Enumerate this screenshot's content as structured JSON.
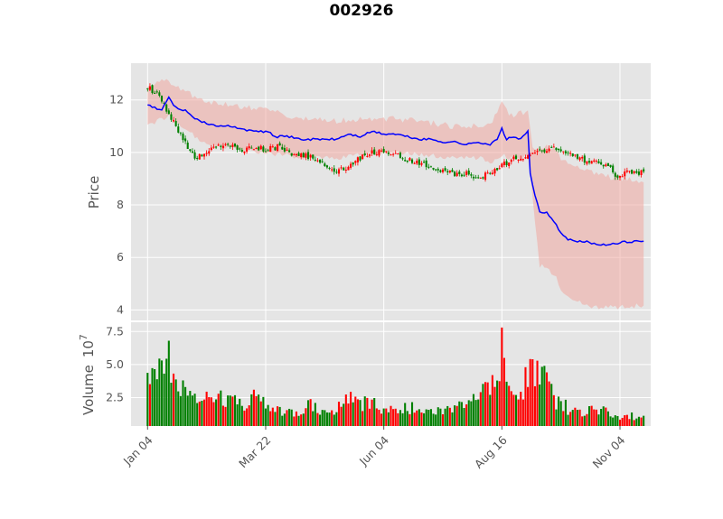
{
  "chart_data": {
    "type": "candlestick",
    "title": "002926",
    "colors": {
      "up": "#ff0000",
      "down": "#008000",
      "ma_line": "#0000ff",
      "band": "#f0a8a0",
      "plot_bg": "#e5e5e5",
      "grid": "#ffffff"
    },
    "price_panel": {
      "ylabel": "Price",
      "ylim": [
        3.6,
        13.4
      ],
      "yticks": [
        4,
        6,
        8,
        10,
        12
      ],
      "ytick_labels": [
        "4",
        "6",
        "8",
        "10",
        "12"
      ]
    },
    "volume_panel": {
      "ylabel": "Volume",
      "scale_label": "10",
      "scale_exp": "7",
      "ylim": [
        0.35,
        8.2
      ],
      "yticks": [
        2.5,
        5.0,
        7.5
      ],
      "ytick_labels": [
        "2.5",
        "5.0",
        "7.5"
      ]
    },
    "xaxis": {
      "xlim": [
        -7,
        213
      ],
      "tick_positions": [
        0,
        50,
        100,
        150,
        200
      ],
      "tick_labels": [
        "Jan 04",
        "Mar 22",
        "Jun 04",
        "Aug 16",
        "Nov 04"
      ]
    },
    "close_anchors": [
      [
        0,
        12.5
      ],
      [
        3,
        12.3
      ],
      [
        5,
        12.2
      ],
      [
        7,
        11.8
      ],
      [
        9,
        11.4
      ],
      [
        12,
        11.0
      ],
      [
        15,
        10.5
      ],
      [
        18,
        10.0
      ],
      [
        21,
        9.8
      ],
      [
        24,
        9.9
      ],
      [
        28,
        10.2
      ],
      [
        32,
        10.3
      ],
      [
        36,
        10.3
      ],
      [
        40,
        10.1
      ],
      [
        45,
        10.2
      ],
      [
        50,
        10.1
      ],
      [
        55,
        10.2
      ],
      [
        60,
        10.0
      ],
      [
        65,
        9.9
      ],
      [
        70,
        9.8
      ],
      [
        75,
        9.5
      ],
      [
        80,
        9.3
      ],
      [
        85,
        9.4
      ],
      [
        90,
        9.8
      ],
      [
        95,
        10.0
      ],
      [
        100,
        10.0
      ],
      [
        105,
        9.9
      ],
      [
        110,
        9.7
      ],
      [
        115,
        9.6
      ],
      [
        120,
        9.5
      ],
      [
        125,
        9.3
      ],
      [
        130,
        9.2
      ],
      [
        135,
        9.2
      ],
      [
        140,
        9.0
      ],
      [
        145,
        9.2
      ],
      [
        150,
        9.5
      ],
      [
        155,
        9.8
      ],
      [
        160,
        9.8
      ],
      [
        165,
        10.0
      ],
      [
        170,
        10.2
      ],
      [
        175,
        10.1
      ],
      [
        180,
        9.9
      ],
      [
        185,
        9.7
      ],
      [
        190,
        9.7
      ],
      [
        195,
        9.5
      ],
      [
        198,
        9.1
      ],
      [
        202,
        9.2
      ],
      [
        206,
        9.3
      ],
      [
        210,
        9.2
      ]
    ],
    "ma_anchors": [
      [
        0,
        11.8
      ],
      [
        3,
        11.7
      ],
      [
        6,
        11.6
      ],
      [
        9,
        12.1
      ],
      [
        12,
        11.7
      ],
      [
        16,
        11.6
      ],
      [
        20,
        11.3
      ],
      [
        25,
        11.1
      ],
      [
        30,
        11.0
      ],
      [
        35,
        11.0
      ],
      [
        40,
        10.9
      ],
      [
        45,
        10.8
      ],
      [
        50,
        10.8
      ],
      [
        55,
        10.6
      ],
      [
        60,
        10.6
      ],
      [
        65,
        10.5
      ],
      [
        70,
        10.5
      ],
      [
        75,
        10.5
      ],
      [
        80,
        10.5
      ],
      [
        85,
        10.7
      ],
      [
        90,
        10.6
      ],
      [
        95,
        10.8
      ],
      [
        100,
        10.7
      ],
      [
        105,
        10.7
      ],
      [
        110,
        10.6
      ],
      [
        115,
        10.5
      ],
      [
        120,
        10.5
      ],
      [
        125,
        10.4
      ],
      [
        130,
        10.4
      ],
      [
        135,
        10.3
      ],
      [
        140,
        10.4
      ],
      [
        145,
        10.3
      ],
      [
        148,
        10.5
      ],
      [
        150,
        10.9
      ],
      [
        152,
        10.5
      ],
      [
        155,
        10.6
      ],
      [
        158,
        10.5
      ],
      [
        161,
        10.8
      ],
      [
        162,
        9.2
      ],
      [
        164,
        8.4
      ],
      [
        166,
        7.7
      ],
      [
        169,
        7.7
      ],
      [
        172,
        7.4
      ],
      [
        175,
        6.9
      ],
      [
        178,
        6.7
      ],
      [
        181,
        6.6
      ],
      [
        186,
        6.6
      ],
      [
        190,
        6.5
      ],
      [
        194,
        6.5
      ],
      [
        198,
        6.5
      ],
      [
        202,
        6.6
      ],
      [
        206,
        6.6
      ],
      [
        210,
        6.6
      ]
    ],
    "band_upper_anchors": [
      [
        0,
        12.6
      ],
      [
        9,
        12.7
      ],
      [
        16,
        12.3
      ],
      [
        25,
        11.9
      ],
      [
        35,
        11.8
      ],
      [
        50,
        11.6
      ],
      [
        65,
        11.3
      ],
      [
        80,
        11.2
      ],
      [
        100,
        11.3
      ],
      [
        115,
        11.2
      ],
      [
        130,
        11.0
      ],
      [
        140,
        11.0
      ],
      [
        146,
        11.2
      ],
      [
        150,
        11.9
      ],
      [
        153,
        11.4
      ],
      [
        156,
        11.4
      ],
      [
        161,
        11.6
      ],
      [
        163,
        10.2
      ],
      [
        170,
        10.2
      ],
      [
        178,
        9.6
      ],
      [
        186,
        9.3
      ],
      [
        194,
        9.1
      ],
      [
        202,
        9.0
      ],
      [
        210,
        8.9
      ]
    ],
    "band_lower_anchors": [
      [
        0,
        11.0
      ],
      [
        9,
        11.4
      ],
      [
        16,
        10.9
      ],
      [
        25,
        10.3
      ],
      [
        35,
        10.2
      ],
      [
        50,
        10.0
      ],
      [
        65,
        9.8
      ],
      [
        80,
        9.8
      ],
      [
        100,
        10.0
      ],
      [
        115,
        9.9
      ],
      [
        130,
        9.8
      ],
      [
        140,
        9.8
      ],
      [
        146,
        9.6
      ],
      [
        150,
        9.9
      ],
      [
        156,
        9.7
      ],
      [
        161,
        9.9
      ],
      [
        163,
        8.3
      ],
      [
        166,
        5.7
      ],
      [
        172,
        5.4
      ],
      [
        176,
        4.6
      ],
      [
        182,
        4.3
      ],
      [
        190,
        4.1
      ],
      [
        200,
        4.1
      ],
      [
        210,
        4.2
      ]
    ],
    "volume_anchors": [
      [
        0,
        3.8
      ],
      [
        3,
        4.0
      ],
      [
        5,
        4.6
      ],
      [
        7,
        5.3
      ],
      [
        9,
        6.8
      ],
      [
        11,
        3.4
      ],
      [
        14,
        2.6
      ],
      [
        18,
        2.4
      ],
      [
        22,
        2.7
      ],
      [
        26,
        2.6
      ],
      [
        30,
        2.5
      ],
      [
        35,
        2.3
      ],
      [
        40,
        2.1
      ],
      [
        45,
        2.4
      ],
      [
        50,
        2.2
      ],
      [
        52,
        1.5
      ],
      [
        56,
        1.4
      ],
      [
        60,
        1.4
      ],
      [
        65,
        1.6
      ],
      [
        70,
        1.9
      ],
      [
        75,
        1.5
      ],
      [
        80,
        1.7
      ],
      [
        85,
        2.6
      ],
      [
        90,
        2.1
      ],
      [
        95,
        2.0
      ],
      [
        100,
        1.7
      ],
      [
        105,
        1.6
      ],
      [
        110,
        1.7
      ],
      [
        115,
        1.6
      ],
      [
        120,
        1.5
      ],
      [
        125,
        1.6
      ],
      [
        130,
        1.7
      ],
      [
        135,
        2.2
      ],
      [
        140,
        2.1
      ],
      [
        143,
        3.2
      ],
      [
        146,
        2.6
      ],
      [
        148,
        3.0
      ],
      [
        150,
        5.0
      ],
      [
        152,
        4.4
      ],
      [
        154,
        3.0
      ],
      [
        157,
        2.4
      ],
      [
        160,
        3.8
      ],
      [
        163,
        4.6
      ],
      [
        166,
        4.2
      ],
      [
        169,
        3.4
      ],
      [
        172,
        2.4
      ],
      [
        176,
        1.9
      ],
      [
        180,
        1.5
      ],
      [
        186,
        1.4
      ],
      [
        190,
        1.5
      ],
      [
        194,
        1.4
      ],
      [
        198,
        1.2
      ],
      [
        202,
        1.1
      ],
      [
        206,
        1.1
      ],
      [
        210,
        1.1
      ]
    ],
    "volume_spikes": [
      [
        9,
        6.8
      ],
      [
        15,
        3.8
      ],
      [
        16,
        3.3
      ],
      [
        150,
        7.8
      ],
      [
        151,
        5.5
      ],
      [
        146,
        4.2
      ],
      [
        160,
        4.8
      ],
      [
        163,
        5.4
      ],
      [
        168,
        4.9
      ]
    ],
    "n_days": 211
  }
}
